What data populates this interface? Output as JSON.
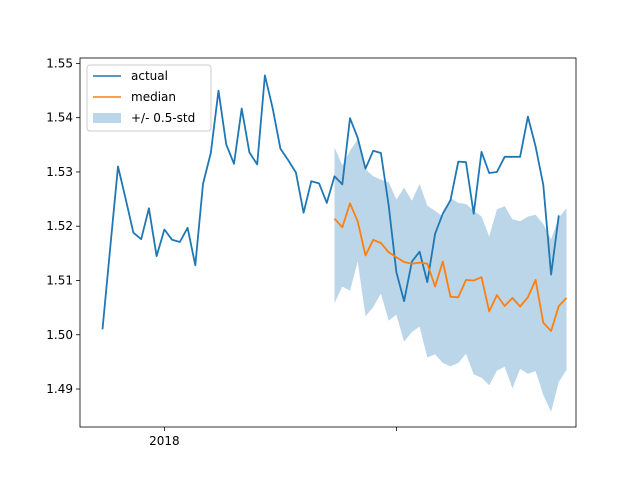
{
  "chart_data": {
    "type": "line",
    "title": "",
    "xlabel": "",
    "ylabel": "",
    "x_ticks": [
      {
        "index": 8,
        "label": "2018"
      },
      {
        "index": 38,
        "label": ""
      }
    ],
    "ylim": [
      1.483,
      1.551
    ],
    "y_ticks": [
      "1.49",
      "1.50",
      "1.51",
      "1.52",
      "1.53",
      "1.54",
      "1.55"
    ],
    "grid": false,
    "legend_position": "top-left",
    "colors": {
      "actual": "#1f77b4",
      "median": "#ff7f0e",
      "band": "#1f77b4"
    },
    "series": [
      {
        "name": "actual",
        "start_index": 0,
        "values": [
          1.501,
          1.516,
          1.531,
          1.525,
          1.5188,
          1.5176,
          1.5233,
          1.5145,
          1.5194,
          1.5175,
          1.5171,
          1.5197,
          1.5128,
          1.5278,
          1.5335,
          1.545,
          1.5351,
          1.5315,
          1.5417,
          1.5336,
          1.5314,
          1.5478,
          1.5418,
          1.5343,
          1.5322,
          1.5299,
          1.5225,
          1.5283,
          1.5279,
          1.5243,
          1.5292,
          1.5277,
          1.5399,
          1.5363,
          1.5306,
          1.5339,
          1.5335,
          1.5238,
          1.5115,
          1.5062,
          1.5135,
          1.5153,
          1.5097,
          1.5186,
          1.5223,
          1.5248,
          1.5319,
          1.5318,
          1.5223,
          1.5337,
          1.5298,
          1.53,
          1.5328,
          1.5328,
          1.5328,
          1.5402,
          1.5347,
          1.5276,
          1.5111,
          1.522
        ]
      },
      {
        "name": "median",
        "start_index": 30,
        "values": [
          1.5214,
          1.5198,
          1.5242,
          1.5209,
          1.5146,
          1.5175,
          1.5169,
          1.5152,
          1.5143,
          1.5134,
          1.5131,
          1.5133,
          1.5131,
          1.5089,
          1.5135,
          1.507,
          1.5069,
          1.5101,
          1.51,
          1.5106,
          1.5043,
          1.5073,
          1.5053,
          1.5068,
          1.5052,
          1.5069,
          1.5101,
          1.5022,
          1.5007,
          1.5053,
          1.5068
        ]
      }
    ],
    "band": {
      "name": "+/- 0.5-std",
      "start_index": 30,
      "upper": [
        1.5345,
        1.5312,
        1.5339,
        1.536,
        1.5305,
        1.5292,
        1.5286,
        1.5281,
        1.5249,
        1.5271,
        1.5247,
        1.5278,
        1.5238,
        1.5228,
        1.5218,
        1.5252,
        1.5243,
        1.5241,
        1.5229,
        1.5218,
        1.5181,
        1.5231,
        1.5237,
        1.5213,
        1.5209,
        1.5218,
        1.5221,
        1.5204,
        1.5176,
        1.5216,
        1.5233
      ],
      "lower": [
        1.5058,
        1.5089,
        1.5081,
        1.5135,
        1.5034,
        1.5051,
        1.5076,
        1.5026,
        1.5037,
        1.4987,
        1.5005,
        1.5015,
        1.4958,
        1.4964,
        1.4948,
        1.4942,
        1.4948,
        1.4965,
        1.4927,
        1.4921,
        1.4907,
        1.4934,
        1.4941,
        1.4901,
        1.4937,
        1.4928,
        1.4933,
        1.4889,
        1.4858,
        1.4913,
        1.4935
      ]
    }
  }
}
